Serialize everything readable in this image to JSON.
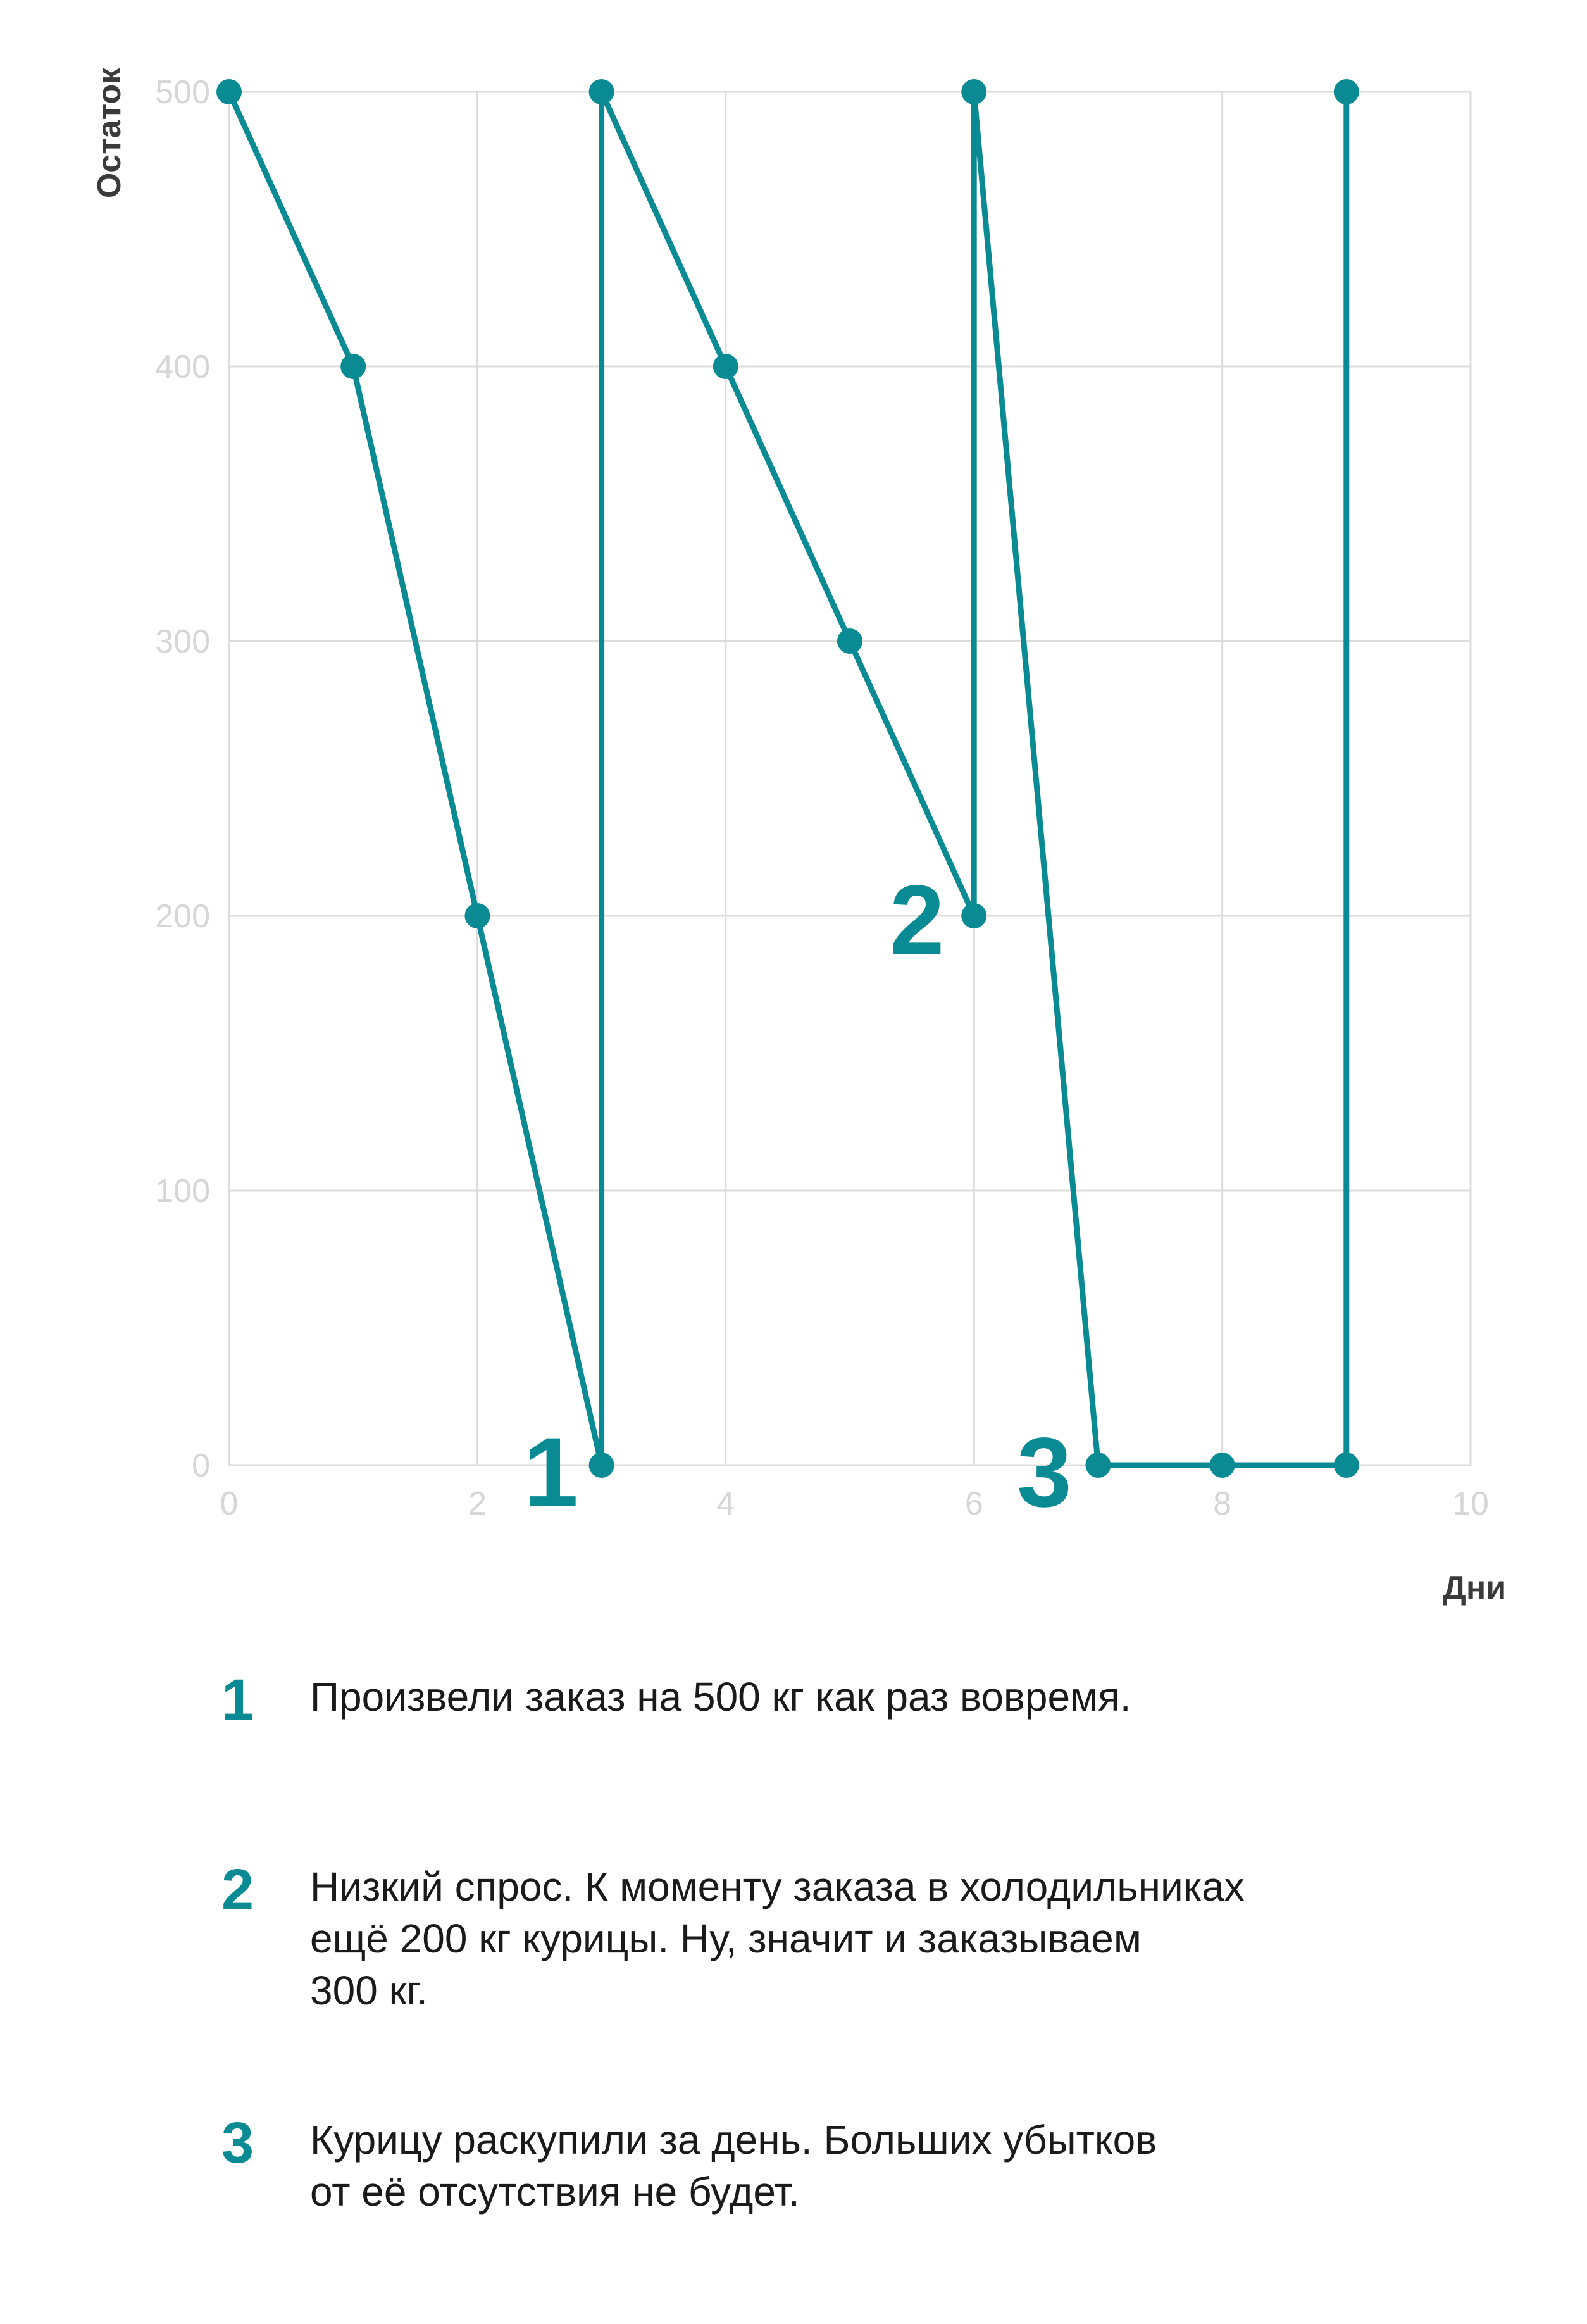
{
  "chart_data": {
    "type": "line",
    "title": "",
    "xlabel": "Дни",
    "ylabel": "Остаток",
    "xlim": [
      0,
      10
    ],
    "ylim": [
      0,
      500
    ],
    "xticks": [
      0,
      2,
      4,
      6,
      8,
      10
    ],
    "yticks": [
      0,
      100,
      200,
      300,
      400,
      500
    ],
    "grid": true,
    "color": "#0a8a93",
    "series": [
      {
        "x": [
          0,
          1,
          2,
          3,
          3,
          4,
          5,
          6,
          6,
          7,
          8,
          9,
          9
        ],
        "y": [
          500,
          400,
          200,
          0,
          500,
          400,
          300,
          200,
          500,
          0,
          0,
          0,
          500
        ]
      }
    ],
    "annotations": [
      {
        "label": "1",
        "x": 3,
        "y": 0
      },
      {
        "label": "2",
        "x": 6,
        "y": 200
      },
      {
        "label": "3",
        "x": 7,
        "y": 0
      }
    ]
  },
  "notes": [
    {
      "num": "1",
      "text": "Произвели заказ на 500 кг как раз вовремя."
    },
    {
      "num": "2",
      "text": "Низкий спрос. К моменту заказа в холодильниках\nещё 200 кг курицы. Ну, значит и заказываем\n300 кг."
    },
    {
      "num": "3",
      "text": "Курицу раскупили за день. Больших убытков\nот её отсутствия не будет."
    }
  ]
}
